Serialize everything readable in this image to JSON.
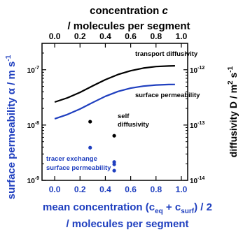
{
  "chart_data": {
    "type": "line",
    "top_axis": {
      "title_line1": "concentration",
      "title_var": "c",
      "title_line2": "/ molecules per segment",
      "ticks": [
        "0.0",
        "0.2",
        "0.4",
        "0.6",
        "0.8",
        "1.0"
      ],
      "range": [
        0.0,
        1.0
      ]
    },
    "x_axis": {
      "title_line1": "mean concentration (c",
      "title_sub1": "eq",
      "title_mid": " + c",
      "title_sub2": "surf",
      "title_end": ") / 2",
      "title_line2": "/ molecules per segment",
      "ticks": [
        "0.0",
        "0.2",
        "0.4",
        "0.6",
        "0.8",
        "1.0"
      ],
      "range": [
        -0.1,
        1.05
      ]
    },
    "y_left": {
      "title": "surface permeability α / m s",
      "title_sup": "-1",
      "scale": "log",
      "range": [
        1e-09,
        3e-07
      ],
      "ticks": [
        {
          "value": 1e-09,
          "base": "10",
          "exp": "-9"
        },
        {
          "value": 1e-08,
          "base": "10",
          "exp": "-8"
        },
        {
          "value": 1e-07,
          "base": "10",
          "exp": "-7"
        }
      ]
    },
    "y_right": {
      "title": "diffusivity D / m",
      "title_sup1": "2",
      "title_mid": " s",
      "title_sup2": "-1",
      "scale": "log",
      "range": [
        1e-14,
        3e-12
      ],
      "ticks": [
        {
          "value": 1e-14,
          "base": "10",
          "exp": "-14"
        },
        {
          "value": 1e-13,
          "base": "10",
          "exp": "-13"
        },
        {
          "value": 1e-12,
          "base": "10",
          "exp": "-12"
        }
      ]
    },
    "series": [
      {
        "name": "transport diffusivity",
        "axis": "right",
        "color": "#000000",
        "style": "line",
        "x": [
          0.0,
          0.1,
          0.2,
          0.3,
          0.4,
          0.5,
          0.6,
          0.7,
          0.8,
          0.9,
          0.95
        ],
        "y": [
          2.6e-13,
          3.1e-13,
          3.9e-13,
          5.1e-13,
          6.6e-13,
          8.2e-13,
          9.6e-13,
          1.07e-12,
          1.14e-12,
          1.17e-12,
          1.18e-12
        ]
      },
      {
        "name": "surface permeability",
        "axis": "left",
        "color": "#1f3fbf",
        "style": "line",
        "x": [
          0.0,
          0.1,
          0.2,
          0.3,
          0.4,
          0.5,
          0.6,
          0.7,
          0.8,
          0.9,
          0.95
        ],
        "y": [
          1.3e-08,
          1.55e-08,
          1.95e-08,
          2.55e-08,
          3.3e-08,
          4.05e-08,
          4.65e-08,
          5.05e-08,
          5.3e-08,
          5.4e-08,
          5.42e-08
        ]
      },
      {
        "name": "self diffusivity",
        "axis": "right",
        "color": "#000000",
        "style": "scatter",
        "x": [
          0.28,
          0.47
        ],
        "y": [
          1.15e-13,
          6.4e-14
        ]
      },
      {
        "name": "tracer exchange surface permeability",
        "axis": "left",
        "color": "#1f3fbf",
        "style": "scatter",
        "x": [
          0.28,
          0.47,
          0.47,
          0.47
        ],
        "y": [
          3.9e-09,
          2.15e-09,
          1.95e-09,
          1.5e-09
        ]
      }
    ],
    "annotations": {
      "transport": "transport diffusivity",
      "surface": "surface permeability",
      "self_line1": "self",
      "self_line2": "diffusivity",
      "tracer_line1": "tracer exchange",
      "tracer_line2": "surface permeability"
    },
    "colors": {
      "blue": "#1f3fbf",
      "black": "#000000"
    }
  }
}
